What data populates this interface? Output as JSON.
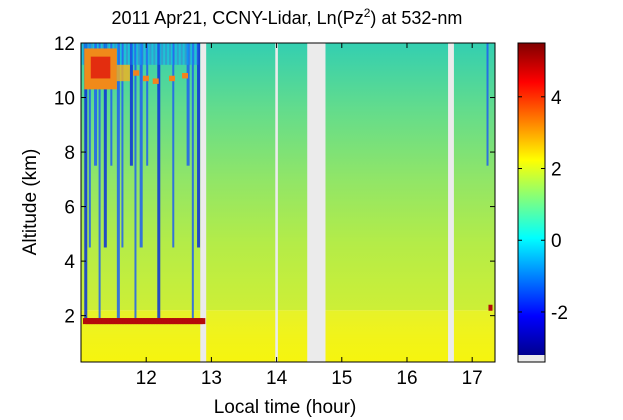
{
  "chart_data": {
    "type": "heatmap",
    "title": "2011 Apr21, CCNY-Lidar, Ln(Pz",
    "title_superscript": "2",
    "title_suffix": ") at 532-nm",
    "xlabel": "Local time (hour)",
    "ylabel": "Altitude (km)",
    "xlim": [
      11.0,
      17.35
    ],
    "ylim": [
      0.3,
      12.0
    ],
    "x_ticks": [
      12,
      13,
      14,
      15,
      16,
      17
    ],
    "y_ticks": [
      2,
      4,
      6,
      8,
      10,
      12
    ],
    "colorbar": {
      "range": [
        -3.2,
        5.5
      ],
      "ticks": [
        -2,
        0,
        2,
        4
      ],
      "colormap": "jet"
    },
    "data_gaps": [
      {
        "start": 12.83,
        "end": 12.92
      },
      {
        "start": 13.98,
        "end": 14.02
      },
      {
        "start": 14.47,
        "end": 14.75
      },
      {
        "start": 16.63,
        "end": 16.72
      }
    ],
    "boundary_layer_top_km": 1.8,
    "cloud_layer_km": [
      10.3,
      11.8
    ],
    "background_color": "#ebebeb"
  }
}
